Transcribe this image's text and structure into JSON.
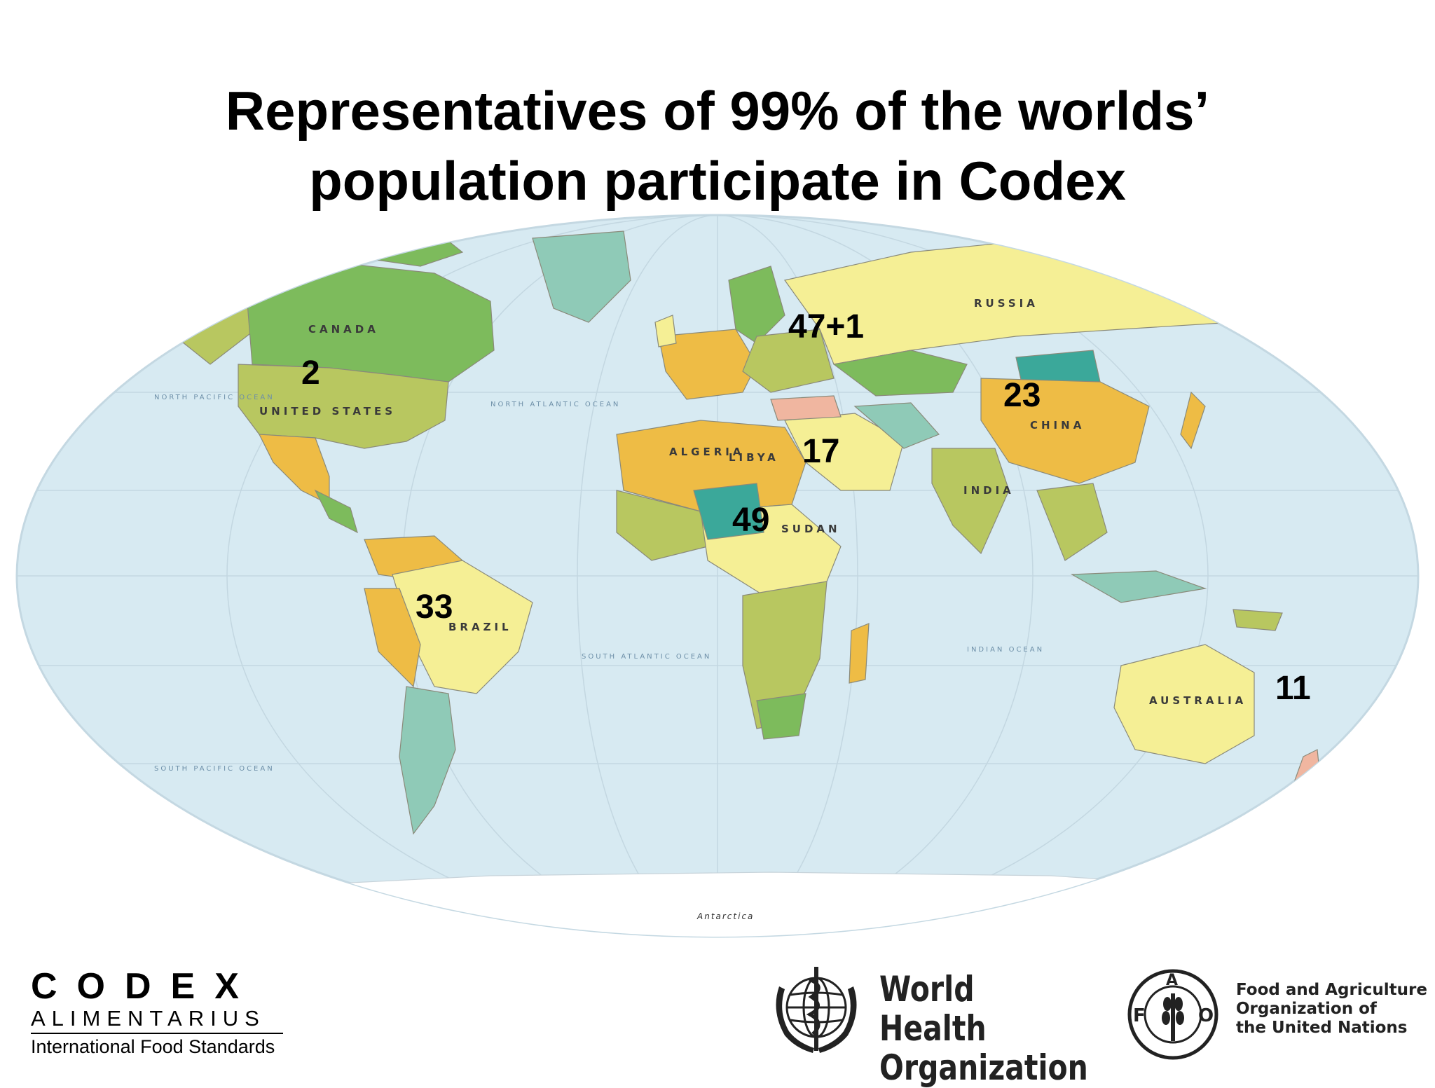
{
  "title": {
    "line1": "Representatives of 99% of the worlds’",
    "line2": "population participate in Codex"
  },
  "map": {
    "country_labels": [
      "CANADA",
      "UNITED STATES",
      "RUSSIA",
      "CHINA",
      "BRAZIL",
      "AUSTRALIA",
      "ALGERIA",
      "INDIA",
      "SUDAN",
      "LIBYA"
    ],
    "ocean_labels": [
      "NORTH PACIFIC OCEAN",
      "NORTH ATLANTIC OCEAN",
      "SOUTH ATLANTIC OCEAN",
      "INDIAN OCEAN",
      "SOUTH PACIFIC OCEAN"
    ],
    "antarctica_label": "Antarctica",
    "region_counts": [
      {
        "region": "North America",
        "count": "2"
      },
      {
        "region": "Europe",
        "count": "47+1"
      },
      {
        "region": "Asia",
        "count": "23"
      },
      {
        "region": "Near East",
        "count": "17"
      },
      {
        "region": "Africa",
        "count": "49"
      },
      {
        "region": "Latin America and Caribbean",
        "count": "33"
      },
      {
        "region": "South West Pacific",
        "count": "11"
      }
    ],
    "colors": {
      "ocean": "#d7eaf2",
      "yellow": "#f5ef95",
      "green": "#7dbb5c",
      "teal": "#8fcab7",
      "orange": "#eebc45",
      "olive": "#b8c760"
    }
  },
  "logos": {
    "codex": {
      "word": "CODEX",
      "sub": "ALIMENTARIUS",
      "tagline": "International Food Standards"
    },
    "who": {
      "line1": "World Health",
      "line2": "Organization",
      "emblem": "who-emblem-icon"
    },
    "fao": {
      "line1": "Food and Agriculture",
      "line2": "Organization of",
      "line3": "the United Nations",
      "emblem": "fao-emblem-icon"
    }
  }
}
